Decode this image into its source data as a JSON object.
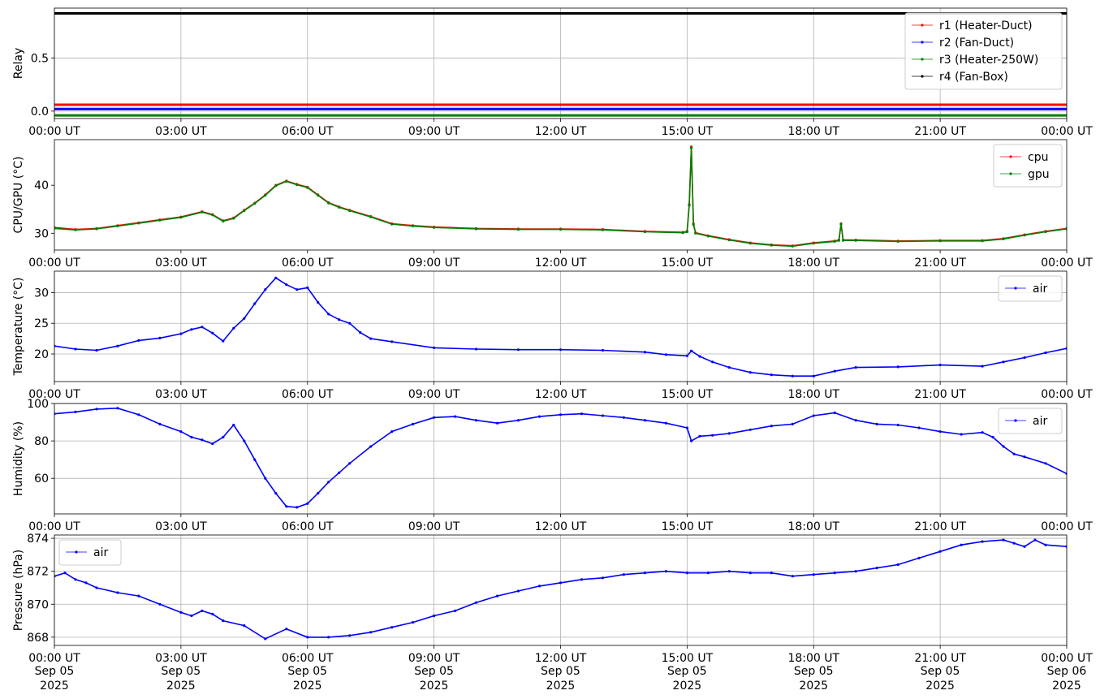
{
  "chart_data": [
    {
      "type": "line",
      "ylabel": "Relay",
      "ylim": [
        -0.07,
        0.97
      ],
      "yticks": [
        0.0,
        0.5
      ],
      "ytick_labels": [
        "0.0",
        "0.5"
      ],
      "grid": true,
      "legend_loc": "upper-right",
      "x_unit": "hours UT, Sep 05 2025",
      "series": [
        {
          "name": "r1 (Heater-Duct)",
          "color": "#ff0000",
          "x": [
            0,
            24
          ],
          "y": [
            0.06,
            0.06
          ]
        },
        {
          "name": "r2 (Fan-Duct)",
          "color": "#0000ff",
          "x": [
            0,
            24
          ],
          "y": [
            0.02,
            0.02
          ]
        },
        {
          "name": "r3 (Heater-250W)",
          "color": "#008000",
          "x": [
            0,
            24
          ],
          "y": [
            -0.04,
            -0.04
          ]
        },
        {
          "name": "r4 (Fan-Box)",
          "color": "#000000",
          "x": [
            0,
            24
          ],
          "y": [
            0.92,
            0.92
          ]
        }
      ]
    },
    {
      "type": "line",
      "ylabel": "CPU/GPU (°C)",
      "ylim": [
        26.5,
        49.5
      ],
      "yticks": [
        30,
        40
      ],
      "ytick_labels": [
        "30",
        "40"
      ],
      "grid": false,
      "legend_loc": "upper-right",
      "x_unit": "hours UT, Sep 05 2025",
      "series": [
        {
          "name": "cpu",
          "color": "#ff0000",
          "x": [
            0,
            0.5,
            1,
            1.5,
            2,
            2.5,
            3,
            3.5,
            3.75,
            4,
            4.25,
            4.5,
            4.75,
            5,
            5.25,
            5.5,
            5.75,
            6,
            6.25,
            6.5,
            6.75,
            7,
            7.5,
            8,
            8.5,
            9,
            10,
            11,
            12,
            13,
            14,
            14.9,
            15.0,
            15.05,
            15.1,
            15.15,
            15.2,
            15.5,
            16,
            16.5,
            17,
            17.5,
            18,
            18.5,
            18.6,
            18.65,
            18.7,
            19,
            20,
            21,
            22,
            22.5,
            23,
            23.5,
            24
          ],
          "y": [
            31.2,
            30.8,
            31.0,
            31.6,
            32.2,
            32.8,
            33.4,
            34.5,
            33.9,
            32.6,
            33.2,
            34.8,
            36.3,
            38.0,
            40.0,
            40.9,
            40.2,
            39.6,
            38.0,
            36.4,
            35.5,
            34.8,
            33.5,
            32.0,
            31.6,
            31.3,
            31.0,
            30.9,
            30.9,
            30.8,
            30.4,
            30.2,
            30.4,
            36.0,
            48.0,
            32.0,
            30.1,
            29.5,
            28.7,
            28.0,
            27.6,
            27.4,
            28.0,
            28.4,
            28.6,
            32.0,
            28.6,
            28.6,
            28.4,
            28.5,
            28.5,
            28.9,
            29.7,
            30.4,
            31.0
          ]
        },
        {
          "name": "gpu",
          "color": "#008000",
          "x": [
            0,
            0.5,
            1,
            1.5,
            2,
            2.5,
            3,
            3.5,
            3.75,
            4,
            4.25,
            4.5,
            4.75,
            5,
            5.25,
            5.5,
            5.75,
            6,
            6.25,
            6.5,
            6.75,
            7,
            7.5,
            8,
            8.5,
            9,
            10,
            11,
            12,
            13,
            14,
            14.9,
            15.0,
            15.05,
            15.1,
            15.15,
            15.2,
            15.5,
            16,
            16.5,
            17,
            17.5,
            18,
            18.5,
            18.6,
            18.65,
            18.7,
            19,
            20,
            21,
            22,
            22.5,
            23,
            23.5,
            24
          ],
          "y": [
            31.0,
            30.7,
            30.9,
            31.5,
            32.1,
            32.7,
            33.3,
            34.4,
            33.8,
            32.5,
            33.1,
            34.7,
            36.2,
            37.9,
            39.9,
            40.8,
            40.1,
            39.5,
            37.9,
            36.3,
            35.4,
            34.7,
            33.4,
            31.9,
            31.5,
            31.2,
            30.9,
            30.8,
            30.8,
            30.7,
            30.3,
            30.1,
            30.3,
            35.8,
            47.8,
            31.8,
            30.0,
            29.4,
            28.6,
            27.9,
            27.5,
            27.3,
            27.9,
            28.3,
            28.5,
            31.9,
            28.5,
            28.5,
            28.3,
            28.4,
            28.4,
            28.8,
            29.6,
            30.3,
            30.9
          ]
        }
      ]
    },
    {
      "type": "line",
      "ylabel": "Temperature (°C)",
      "ylim": [
        15.5,
        33.5
      ],
      "yticks": [
        20,
        25,
        30
      ],
      "ytick_labels": [
        "20",
        "25",
        "30"
      ],
      "grid": true,
      "legend_loc": "upper-right",
      "x_unit": "hours UT, Sep 05 2025",
      "series": [
        {
          "name": "air",
          "color": "#0000ff",
          "x": [
            0,
            0.5,
            1,
            1.5,
            2,
            2.5,
            3,
            3.25,
            3.5,
            3.75,
            4,
            4.25,
            4.5,
            4.75,
            5,
            5.25,
            5.5,
            5.75,
            6,
            6.25,
            6.5,
            6.75,
            7,
            7.25,
            7.5,
            8,
            9,
            10,
            11,
            12,
            13,
            14,
            14.5,
            15,
            15.1,
            15.3,
            15.6,
            16,
            16.5,
            17,
            17.5,
            18,
            18.5,
            19,
            20,
            21,
            22,
            22.5,
            23,
            23.5,
            24
          ],
          "y": [
            21.3,
            20.8,
            20.6,
            21.3,
            22.2,
            22.6,
            23.3,
            24.0,
            24.4,
            23.4,
            22.1,
            24.2,
            25.8,
            28.2,
            30.5,
            32.4,
            31.3,
            30.5,
            30.8,
            28.4,
            26.5,
            25.6,
            25.0,
            23.5,
            22.5,
            22.0,
            21.0,
            20.8,
            20.7,
            20.7,
            20.6,
            20.3,
            19.9,
            19.7,
            20.5,
            19.6,
            18.7,
            17.8,
            17.0,
            16.6,
            16.4,
            16.4,
            17.2,
            17.8,
            17.9,
            18.2,
            18.0,
            18.7,
            19.4,
            20.2,
            20.9
          ]
        }
      ]
    },
    {
      "type": "line",
      "ylabel": "Humidity (%)",
      "ylim": [
        41,
        100
      ],
      "yticks": [
        60,
        80,
        100
      ],
      "ytick_labels": [
        "60",
        "80",
        "100"
      ],
      "grid": true,
      "legend_loc": "upper-right",
      "x_unit": "hours UT, Sep 05 2025",
      "series": [
        {
          "name": "air",
          "color": "#0000ff",
          "x": [
            0,
            0.5,
            1,
            1.5,
            2,
            2.5,
            3,
            3.25,
            3.5,
            3.75,
            4,
            4.25,
            4.5,
            4.75,
            5,
            5.25,
            5.5,
            5.75,
            6,
            6.25,
            6.5,
            6.75,
            7,
            7.5,
            8,
            8.5,
            9,
            9.5,
            10,
            10.5,
            11,
            11.5,
            12,
            12.5,
            13,
            13.5,
            14,
            14.5,
            15,
            15.1,
            15.3,
            15.6,
            16,
            16.5,
            17,
            17.5,
            18,
            18.5,
            19,
            19.5,
            20,
            20.5,
            21,
            21.5,
            22,
            22.25,
            22.5,
            22.75,
            23,
            23.5,
            24
          ],
          "y": [
            94.5,
            95.5,
            97.0,
            97.5,
            94.0,
            89.0,
            85.0,
            82.0,
            80.5,
            78.5,
            82.0,
            88.5,
            80.0,
            70.0,
            60.0,
            52.0,
            45.0,
            44.5,
            46.5,
            52.0,
            58.0,
            63.0,
            68.0,
            77.0,
            85.0,
            89.0,
            92.5,
            93.0,
            91.0,
            89.5,
            91.0,
            93.0,
            94.0,
            94.5,
            93.5,
            92.5,
            91.0,
            89.5,
            87.0,
            80.0,
            82.5,
            83.0,
            84.0,
            86.0,
            88.0,
            89.0,
            93.5,
            95.0,
            91.0,
            89.0,
            88.5,
            87.0,
            85.0,
            83.5,
            84.5,
            82.0,
            77.0,
            73.0,
            71.5,
            68.0,
            62.5
          ]
        }
      ]
    },
    {
      "type": "line",
      "ylabel": "Pressure (hPa)",
      "ylim": [
        867.5,
        874.2
      ],
      "yticks": [
        868,
        870,
        872,
        874
      ],
      "ytick_labels": [
        "868",
        "870",
        "872",
        "874"
      ],
      "grid": true,
      "legend_loc": "upper-left",
      "x_unit": "hours UT, Sep 05 2025",
      "series": [
        {
          "name": "air",
          "color": "#0000ff",
          "x": [
            0,
            0.25,
            0.5,
            0.75,
            1,
            1.5,
            2,
            2.5,
            3,
            3.25,
            3.5,
            3.75,
            4,
            4.5,
            5,
            5.5,
            6,
            6.5,
            7,
            7.5,
            8,
            8.5,
            9,
            9.5,
            10,
            10.5,
            11,
            11.5,
            12,
            12.5,
            13,
            13.5,
            14,
            14.5,
            15,
            15.5,
            16,
            16.5,
            17,
            17.5,
            18,
            18.5,
            19,
            19.5,
            20,
            20.5,
            21,
            21.5,
            22,
            22.5,
            22.75,
            23,
            23.25,
            23.5,
            24
          ],
          "y": [
            871.7,
            871.9,
            871.5,
            871.3,
            871.0,
            870.7,
            870.5,
            870.0,
            869.5,
            869.3,
            869.6,
            869.4,
            869.0,
            868.7,
            867.9,
            868.5,
            868.0,
            868.0,
            868.1,
            868.3,
            868.6,
            868.9,
            869.3,
            869.6,
            870.1,
            870.5,
            870.8,
            871.1,
            871.3,
            871.5,
            871.6,
            871.8,
            871.9,
            872.0,
            871.9,
            871.9,
            872.0,
            871.9,
            871.9,
            871.7,
            871.8,
            871.9,
            872.0,
            872.2,
            872.4,
            872.8,
            873.2,
            873.6,
            873.8,
            873.9,
            873.7,
            873.5,
            873.9,
            873.6,
            873.5
          ]
        }
      ]
    }
  ],
  "xaxis": {
    "tick_hours": [
      0,
      3,
      6,
      9,
      12,
      15,
      18,
      21,
      24
    ],
    "tick_labels": [
      "00:00 UT",
      "03:00 UT",
      "06:00 UT",
      "09:00 UT",
      "12:00 UT",
      "15:00 UT",
      "18:00 UT",
      "21:00 UT",
      "00:00 UT"
    ],
    "bottom_date_line": [
      "Sep 05",
      "Sep 05",
      "Sep 05",
      "Sep 05",
      "Sep 05",
      "Sep 05",
      "Sep 05",
      "Sep 05",
      "Sep 06"
    ],
    "bottom_year_line": [
      "2025",
      "2025",
      "2025",
      "2025",
      "2025",
      "2025",
      "2025",
      "2025",
      "2025"
    ]
  }
}
